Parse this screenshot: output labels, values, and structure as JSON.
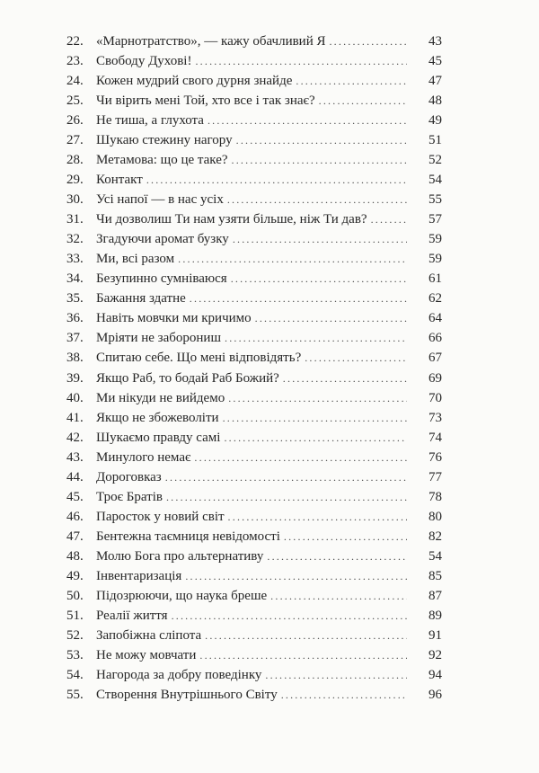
{
  "toc": [
    {
      "num": "22.",
      "title": "«Марнотратство», — кажу обачливий Я",
      "page": "43"
    },
    {
      "num": "23.",
      "title": "Свободу Духові!",
      "page": "45"
    },
    {
      "num": "24.",
      "title": "Кожен мудрий свого дурня знайде",
      "page": "47"
    },
    {
      "num": "25.",
      "title": "Чи вірить мені Той, хто все і так знає?",
      "page": "48"
    },
    {
      "num": "26.",
      "title": "Не тиша, а глухота",
      "page": "49"
    },
    {
      "num": "27.",
      "title": "Шукаю стежину нагору",
      "page": "51"
    },
    {
      "num": "28.",
      "title": "Метамова: що це таке?",
      "page": "52"
    },
    {
      "num": "29.",
      "title": "Контакт",
      "page": "54"
    },
    {
      "num": "30.",
      "title": "Усі напої — в нас усіх",
      "page": "55"
    },
    {
      "num": "31.",
      "title": "Чи дозволиш Ти нам узяти більше, ніж Ти дав?",
      "page": "57"
    },
    {
      "num": "32.",
      "title": "Згадуючи аромат бузку",
      "page": "59"
    },
    {
      "num": "33.",
      "title": "Ми, всі разом",
      "page": "59"
    },
    {
      "num": "34.",
      "title": "Безупинно сумніваюся",
      "page": "61"
    },
    {
      "num": "35.",
      "title": "Бажання здатне",
      "page": "62"
    },
    {
      "num": "36.",
      "title": "Навіть мовчки ми кричимо",
      "page": "64"
    },
    {
      "num": "37.",
      "title": "Мріяти не заборониш",
      "page": "66"
    },
    {
      "num": "38.",
      "title": "Спитаю себе. Що мені відповідять?",
      "page": "67"
    },
    {
      "num": "39.",
      "title": "Якщо Раб, то бодай Раб Божий?",
      "page": "69"
    },
    {
      "num": "40.",
      "title": "Ми нікуди не вийдемо",
      "page": "70"
    },
    {
      "num": "41.",
      "title": "Якщо не збожеволіти",
      "page": "73"
    },
    {
      "num": "42.",
      "title": "Шукаємо правду самі",
      "page": "74"
    },
    {
      "num": "43.",
      "title": "Минулого немає",
      "page": "76"
    },
    {
      "num": "44.",
      "title": "Дороговказ",
      "page": "77"
    },
    {
      "num": "45.",
      "title": "Троє Братів",
      "page": "78"
    },
    {
      "num": "46.",
      "title": "Паросток у новий світ",
      "page": "80"
    },
    {
      "num": "47.",
      "title": "Бентежна таємниця невідомості",
      "page": "82"
    },
    {
      "num": "48.",
      "title": "Молю Бога про альтернативу",
      "page": "54"
    },
    {
      "num": "49.",
      "title": "Інвентаризація",
      "page": "85"
    },
    {
      "num": "50.",
      "title": "Підозрюючи, що наука бреше",
      "page": "87"
    },
    {
      "num": "51.",
      "title": "Реалії життя",
      "page": "89"
    },
    {
      "num": "52.",
      "title": "Запобіжна сліпота",
      "page": "91"
    },
    {
      "num": "53.",
      "title": "Не можу мовчати",
      "page": "92"
    },
    {
      "num": "54.",
      "title": "Нагорода за добру поведінку",
      "page": "94"
    },
    {
      "num": "55.",
      "title": "Створення Внутрішнього Світу",
      "page": "96"
    }
  ]
}
